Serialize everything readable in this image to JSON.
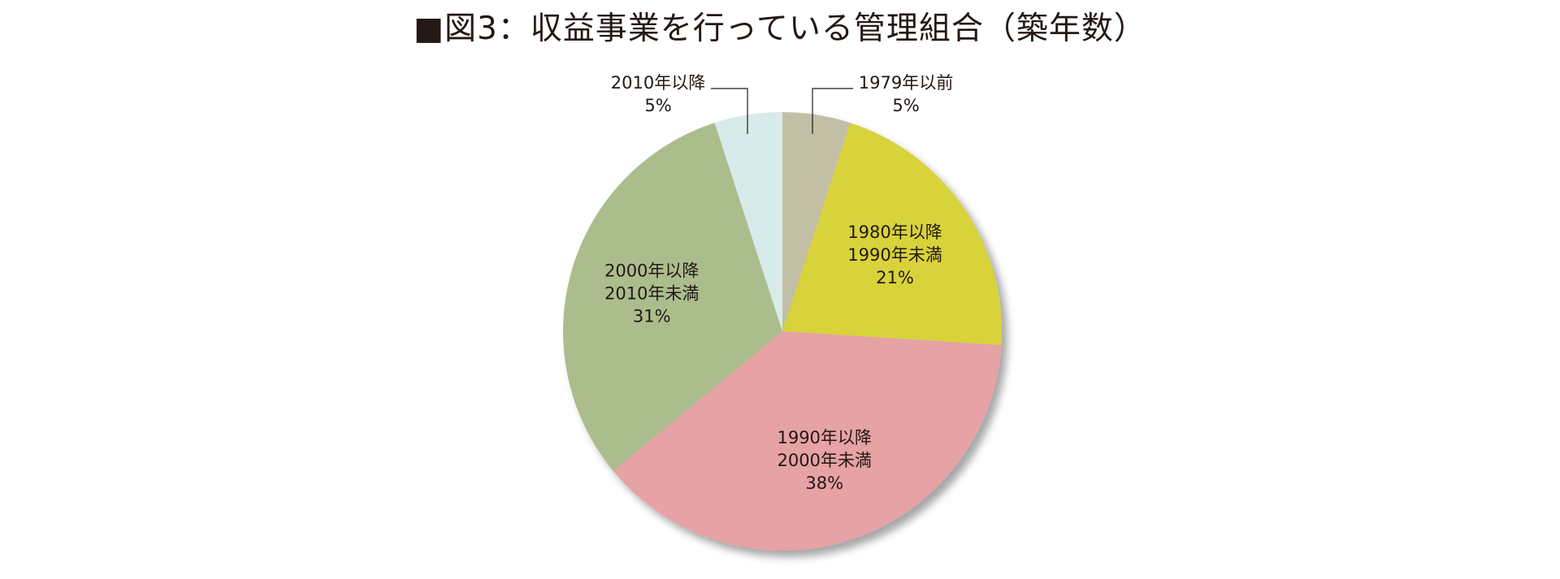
{
  "chart_data": {
    "type": "pie",
    "title": "■図3：収益事業を行っている管理組合（築年数）",
    "slices": [
      {
        "label_lines": [
          "1979年以前"
        ],
        "value": 5,
        "value_label": "5%",
        "color": "#c3bfa6",
        "label_mode": "outside"
      },
      {
        "label_lines": [
          "1980年以降",
          "1990年未満"
        ],
        "value": 21,
        "value_label": "21%",
        "color": "#d8d23a",
        "label_mode": "inside"
      },
      {
        "label_lines": [
          "1990年以降",
          "2000年未満"
        ],
        "value": 38,
        "value_label": "38%",
        "color": "#e6a2a5",
        "label_mode": "inside"
      },
      {
        "label_lines": [
          "2000年以降",
          "2010年未満"
        ],
        "value": 31,
        "value_label": "31%",
        "color": "#acbd8d",
        "label_mode": "inside"
      },
      {
        "label_lines": [
          "2010年以降"
        ],
        "value": 5,
        "value_label": "5%",
        "color": "#d7ebea",
        "label_mode": "outside"
      }
    ],
    "start": "12 o'clock",
    "direction": "clockwise",
    "legend": "none"
  }
}
